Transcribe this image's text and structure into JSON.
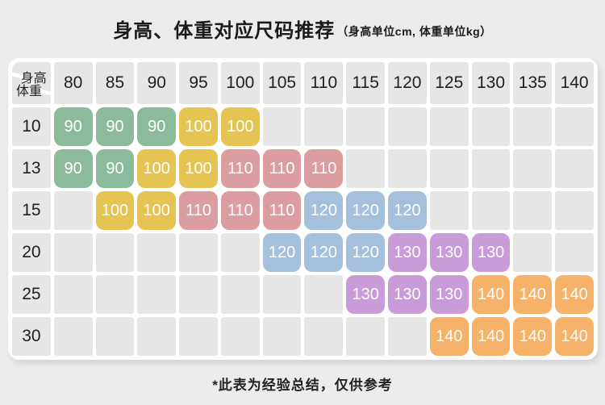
{
  "header": {
    "title": "身高、体重对应尺码推荐",
    "subtitle": "（身高单位cm, 体重单位kg）"
  },
  "corner": {
    "top_label": "身高",
    "bottom_label": "体重"
  },
  "footnote": "*此表为经验总结，仅供参考",
  "colors": {
    "page_bg": "#ececec",
    "card_bg": "#ffffff",
    "cell_bg": "#e6e6e6",
    "text_dark": "#1f1f1f",
    "badge_text": "#fdfdfd"
  },
  "chart_data": {
    "type": "table",
    "title": "身高、体重对应尺码推荐",
    "subtitle": "（身高单位cm, 体重单位kg）",
    "x_label": "身高",
    "y_label": "体重",
    "columns": [
      80,
      85,
      90,
      95,
      100,
      105,
      110,
      115,
      120,
      125,
      130,
      135,
      140
    ],
    "size_colors": {
      "90": "#8cbb9c",
      "100": "#e5c454",
      "110": "#dc9da1",
      "120": "#a4c0dd",
      "130": "#c99bd9",
      "140": "#f7b269"
    },
    "rows": [
      {
        "weight": 10,
        "sizes": [
          90,
          90,
          90,
          100,
          100,
          null,
          null,
          null,
          null,
          null,
          null,
          null,
          null
        ]
      },
      {
        "weight": 13,
        "sizes": [
          90,
          90,
          100,
          100,
          110,
          110,
          110,
          null,
          null,
          null,
          null,
          null,
          null
        ]
      },
      {
        "weight": 15,
        "sizes": [
          null,
          100,
          100,
          110,
          110,
          110,
          120,
          120,
          120,
          null,
          null,
          null,
          null
        ]
      },
      {
        "weight": 20,
        "sizes": [
          null,
          null,
          null,
          null,
          null,
          120,
          120,
          120,
          130,
          130,
          130,
          null,
          null
        ]
      },
      {
        "weight": 25,
        "sizes": [
          null,
          null,
          null,
          null,
          null,
          null,
          null,
          130,
          130,
          130,
          140,
          140,
          140
        ]
      },
      {
        "weight": 30,
        "sizes": [
          null,
          null,
          null,
          null,
          null,
          null,
          null,
          null,
          null,
          140,
          140,
          140,
          140
        ]
      }
    ],
    "footnote": "*此表为经验总结，仅供参考"
  }
}
